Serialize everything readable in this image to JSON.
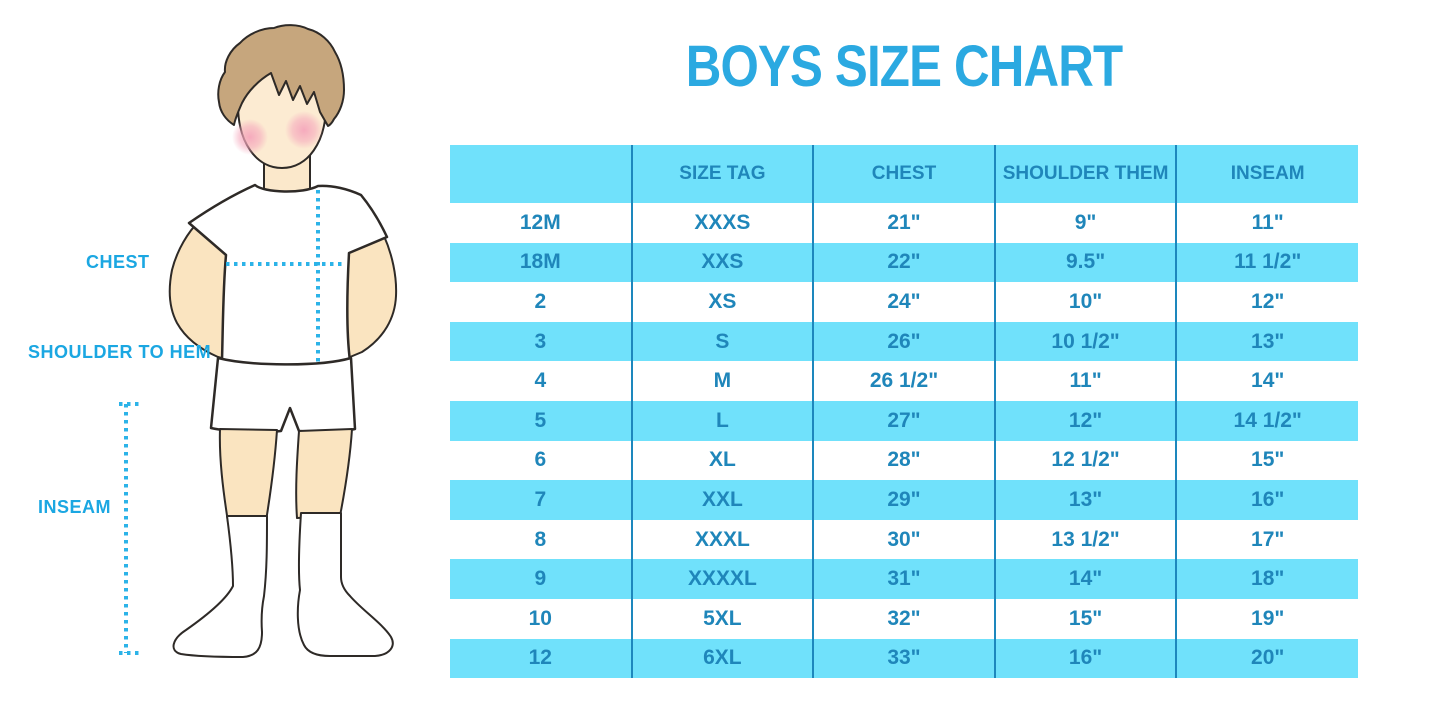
{
  "title": "BOYS SIZE CHART",
  "colors": {
    "accent": "#2BA9E1",
    "accent2": "#1BA7E2",
    "table_text": "#1F86BA",
    "row_blue": "#70E1FB",
    "divider": "#1D87BD",
    "dotted_line": "#2CB3E8",
    "skin": "#FBE8CB",
    "hair": "#C6A67D",
    "cheek": "#F5A7BC",
    "outline": "#2E2A27"
  },
  "diagram": {
    "labels": {
      "chest": "CHEST",
      "shoulder_to_hem": "SHOULDER TO HEM",
      "inseam": "INSEAM"
    }
  },
  "chart_data": {
    "type": "table",
    "title": "BOYS SIZE CHART",
    "columns": [
      "",
      "SIZE TAG",
      "CHEST",
      "SHOULDER THEM",
      "INSEAM"
    ],
    "rows": [
      [
        "12M",
        "XXXS",
        "21\"",
        "9\"",
        "11\""
      ],
      [
        "18M",
        "XXS",
        "22\"",
        "9.5\"",
        "11 1/2\""
      ],
      [
        "2",
        "XS",
        "24\"",
        "10\"",
        "12\""
      ],
      [
        "3",
        "S",
        "26\"",
        "10 1/2\"",
        "13\""
      ],
      [
        "4",
        "M",
        "26 1/2\"",
        "11\"",
        "14\""
      ],
      [
        "5",
        "L",
        "27\"",
        "12\"",
        "14 1/2\""
      ],
      [
        "6",
        "XL",
        "28\"",
        "12 1/2\"",
        "15\""
      ],
      [
        "7",
        "XXL",
        "29\"",
        "13\"",
        "16\""
      ],
      [
        "8",
        "XXXL",
        "30\"",
        "13 1/2\"",
        "17\""
      ],
      [
        "9",
        "XXXXL",
        "31\"",
        "14\"",
        "18\""
      ],
      [
        "10",
        "5XL",
        "32\"",
        "15\"",
        "19\""
      ],
      [
        "12",
        "6XL",
        "33\"",
        "16\"",
        "20\""
      ]
    ]
  }
}
